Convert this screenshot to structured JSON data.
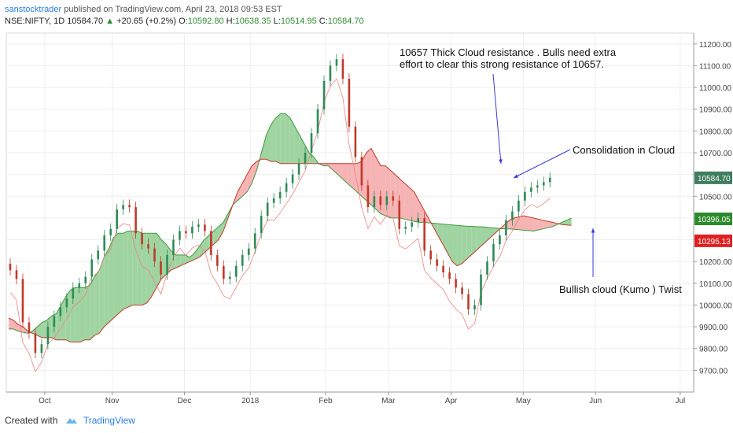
{
  "header": {
    "author": "sanstocktrader",
    "published": "published on TradingView.com, April 23, 2018 09:53 EST",
    "symbol": "NSE:NIFTY, 1D",
    "last": "10584.70",
    "change_arrow": "▲",
    "change": "+20.65 (+0.2%)",
    "o_label": "O:",
    "o_val": "10592.80",
    "h_label": "H:",
    "h_val": "10638.35",
    "l_label": "L:",
    "l_val": "10514.95",
    "c_label": "C:",
    "c_val": "10584.70"
  },
  "annotations": {
    "resistance_line1": "10657  Thick Cloud resistance . Bulls need extra",
    "resistance_line2": "effort  to clear this strong resistance of 10657.",
    "consolidation": "Consolidation in Cloud",
    "twist": "Bullish cloud (Kumo ) Twist"
  },
  "footer": {
    "created_with": "Created with",
    "brand": "TradingView"
  },
  "colors": {
    "up": "#2e8b57",
    "down": "#c0392b",
    "cloud_bull": "#9fd4a1",
    "cloud_bear": "#f6b3b3",
    "last_price_bg": "#3f7d5e",
    "green_tag": "#2b8a2b",
    "red_tag": "#e02020",
    "arrow": "#3b3bd8"
  },
  "chart_data": {
    "type": "candlestick",
    "ylim": [
      9600,
      11250
    ],
    "y_ticks": [
      "9700.00",
      "9800.00",
      "9900.00",
      "10000.00",
      "10100.00",
      "10200.00",
      "10300.00",
      "10400.00",
      "10500.00",
      "10600.00",
      "10700.00",
      "10800.00",
      "10900.00",
      "11000.00",
      "11100.00",
      "11200.00"
    ],
    "x_ticks": [
      "Oct",
      "Nov",
      "Dec",
      "2018",
      "Feb",
      "Mar",
      "Apr",
      "May",
      "Jun",
      "Jul"
    ],
    "price_labels": [
      {
        "text": "10584.70",
        "value": 10584.7,
        "kind": "last"
      },
      {
        "text": "10396.05",
        "value": 10396.05,
        "kind": "green"
      },
      {
        "text": "10295.13",
        "value": 10295.13,
        "kind": "red"
      }
    ],
    "series": [
      {
        "name": "Close (approx.)",
        "values": [
          10160,
          10120,
          9920,
          9870,
          9780,
          9820,
          9900,
          9950,
          9990,
          10030,
          10080,
          10100,
          10130,
          10210,
          10250,
          10320,
          10350,
          10440,
          10460,
          10450,
          10330,
          10280,
          10260,
          10200,
          10140,
          10230,
          10300,
          10340,
          10330,
          10360,
          10370,
          10340,
          10230,
          10180,
          10120,
          10130,
          10180,
          10230,
          10260,
          10330,
          10410,
          10470,
          10490,
          10520,
          10560,
          10600,
          10650,
          10700,
          10790,
          10900,
          11030,
          11100,
          11130,
          11040,
          10820,
          10680,
          10550,
          10450,
          10500,
          10460,
          10500,
          10480,
          10350,
          10360,
          10380,
          10400,
          10250,
          10210,
          10180,
          10150,
          10120,
          10080,
          10050,
          9980,
          10000,
          10140,
          10200,
          10280,
          10320,
          10390,
          10430,
          10480,
          10520,
          10540,
          10550,
          10565,
          10585
        ]
      }
    ],
    "annotations": [
      "10657  Thick Cloud resistance . Bulls need extra effort  to clear this strong resistance of 10657.",
      "Consolidation in Cloud",
      "Bullish cloud (Kumo ) Twist"
    ]
  }
}
